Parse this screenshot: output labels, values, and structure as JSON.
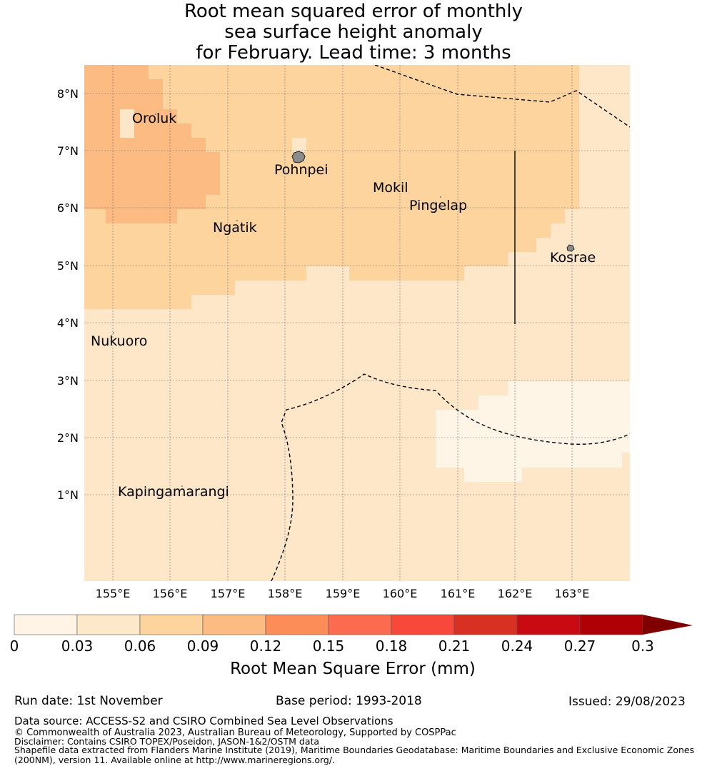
{
  "title": {
    "line1": "Root mean squared error of monthly",
    "line2": "sea surface height anomaly",
    "line3": "for February. Lead time: 3 months"
  },
  "map": {
    "lat_labels": [
      "8°N",
      "7°N",
      "6°N",
      "5°N",
      "4°N",
      "3°N",
      "2°N",
      "1°N"
    ],
    "lon_labels": [
      "155°E",
      "156°E",
      "157°E",
      "158°E",
      "159°E",
      "160°E",
      "161°E",
      "162°E",
      "163°E"
    ],
    "islands": [
      "Oroluk",
      "Pohnpei",
      "Mokil",
      "Pingelap",
      "Ngatik",
      "Kosrae",
      "Nukuoro",
      "Kapingamarangi"
    ],
    "colors": {
      "band_0_003": "#fff5e6",
      "band_003_006": "#fee6c8",
      "band_006_009": "#fdd49e",
      "band_009_012": "#fdbb84",
      "land": "#8c8c8c"
    }
  },
  "colorbar": {
    "ticks": [
      "0",
      "0.03",
      "0.06",
      "0.09",
      "0.12",
      "0.15",
      "0.18",
      "0.21",
      "0.24",
      "0.27",
      "0.3"
    ],
    "colors": [
      "#fff4e5",
      "#fee8ca",
      "#fdd49e",
      "#fdbb84",
      "#fc8d59",
      "#fc6b50",
      "#f8483c",
      "#d83022",
      "#c90a12",
      "#ae0005"
    ],
    "extend_color": "#7f0000",
    "label": "Root Mean Square Error (mm)"
  },
  "footer": {
    "run_date": "Run date: 1st November",
    "base_period": "Base period: 1993-2018",
    "issued": "Issued: 29/08/2023",
    "data_source": "Data source: ACCESS-S2 and CSIRO Combined Sea Level Observations",
    "copyright": "© Commonwealth of Australia 2023, Australian Bureau of Meteorology, Supported by COSPPac",
    "disclaimer": "Disclaimer: Contains CSIRO TOPEX/Poseidon, JASON-1&2/OSTM data",
    "shapefile1": "Shapefile data extracted from Flanders Marine Institute (2019), Maritime Boundaries Geodatabase: Maritime Boundaries and Exclusive Economic Zones",
    "shapefile2": "(200NM), version 11. Available online at http://www.marineregions.org/."
  }
}
